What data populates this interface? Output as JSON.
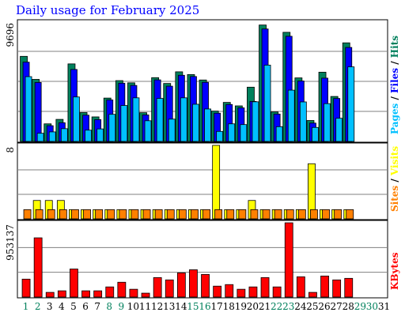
{
  "chart_data": {
    "type": "bar",
    "title": "Daily usage for February 2025",
    "x_labels": [
      "1",
      "2",
      "3",
      "4",
      "5",
      "6",
      "7",
      "8",
      "9",
      "10",
      "11",
      "12",
      "13",
      "14",
      "15",
      "16",
      "17",
      "18",
      "19",
      "20",
      "21",
      "22",
      "23",
      "24",
      "25",
      "26",
      "27",
      "28",
      "29",
      "30",
      "31"
    ],
    "weekend_days": [
      1,
      2,
      8,
      9,
      15,
      16,
      22,
      23,
      29,
      30
    ],
    "panels": [
      {
        "name": "hits_files_pages",
        "ymax": 9696,
        "ymax_label": "9696",
        "legend": [
          "Pages",
          "/",
          "Files",
          "/",
          "Hits"
        ],
        "series": [
          {
            "name": "Hits",
            "color": "#00805c",
            "values": [
              6870,
              5010,
              1420,
              1780,
              6260,
              2330,
              1980,
              3500,
              4910,
              4730,
              2320,
              5150,
              4680,
              5620,
              5400,
              4960,
              2450,
              3150,
              2870,
              4380,
              9400,
              2380,
              8810,
              5130,
              1690,
              5590,
              3630,
              7960,
              0,
              0,
              0
            ]
          },
          {
            "name": "Files",
            "color": "#0000ff",
            "values": [
              6400,
              4760,
              1270,
              1510,
              5810,
              2120,
              1760,
              3350,
              4700,
              4520,
              2140,
              4970,
              4460,
              5340,
              5240,
              4770,
              2280,
              2980,
              2710,
              3230,
              9080,
              2210,
              8490,
              4880,
              1480,
              5110,
              3470,
              7590,
              0,
              0,
              0
            ]
          },
          {
            "name": "Pages",
            "color": "#00c0ff",
            "values": [
              5230,
              660,
              770,
              1030,
              3590,
              910,
              1010,
              2190,
              2900,
              3520,
              1670,
              3470,
              1800,
              3520,
              3000,
              2620,
              810,
              1420,
              1360,
              3200,
              6160,
              1190,
              4140,
              3190,
              1130,
              3050,
              1870,
              6020,
              0,
              0,
              0
            ]
          }
        ]
      },
      {
        "name": "visits_sites",
        "ymax": 8,
        "ymax_label": "8",
        "legend": [
          "Sites",
          "/",
          "Visits"
        ],
        "series": [
          {
            "name": "Visits",
            "color": "#ffff00",
            "values": [
              0,
              2,
              2,
              2,
              1,
              1,
              1,
              1,
              1,
              1,
              1,
              1,
              1,
              1,
              1,
              1,
              8,
              1,
              1,
              2,
              1,
              1,
              1,
              1,
              6,
              1,
              1,
              1,
              0,
              0,
              0
            ]
          },
          {
            "name": "Sites",
            "color": "#ff8000",
            "values": [
              1,
              1,
              1,
              1,
              1,
              1,
              1,
              1,
              1,
              1,
              1,
              1,
              1,
              1,
              1,
              1,
              1,
              1,
              1,
              1,
              1,
              1,
              1,
              1,
              1,
              1,
              1,
              1,
              0,
              0,
              0
            ]
          }
        ]
      },
      {
        "name": "kbytes",
        "ymax": 953137,
        "ymax_label": "953137",
        "legend": [
          "KBytes"
        ],
        "series": [
          {
            "name": "KBytes",
            "color": "#ff0000",
            "values": [
              230000,
              760000,
              60000,
              80000,
              360000,
              80000,
              80000,
              130000,
              190000,
              100000,
              50000,
              250000,
              220000,
              310000,
              350000,
              290000,
              140000,
              160000,
              100000,
              130000,
              250000,
              130000,
              953137,
              260000,
              60000,
              270000,
              220000,
              240000,
              0,
              0,
              0
            ]
          }
        ]
      }
    ]
  },
  "colors": {
    "title": "#0000ff",
    "weekday_label": "#000000",
    "weekend_label": "#00805c"
  }
}
